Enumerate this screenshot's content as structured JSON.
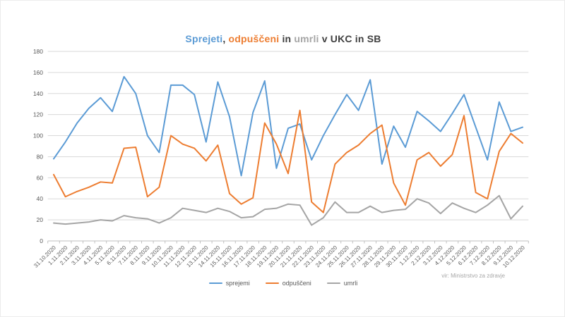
{
  "title": {
    "parts": [
      {
        "text": "Sprejeti",
        "color": "#5B9BD5"
      },
      {
        "text": ", ",
        "color": "#404040"
      },
      {
        "text": "odpuščeni",
        "color": "#ED7D31"
      },
      {
        "text": " in ",
        "color": "#404040"
      },
      {
        "text": "umrli",
        "color": "#A5A5A5"
      },
      {
        "text": " v UKC in SB",
        "color": "#404040"
      }
    ]
  },
  "source_note": "vir: Ministrstvo za zdravje",
  "legend": [
    {
      "label": "sprejemi",
      "color": "#5B9BD5"
    },
    {
      "label": "odpuščeni",
      "color": "#ED7D31"
    },
    {
      "label": "umrli",
      "color": "#A5A5A5"
    }
  ],
  "axis_colors": {
    "gridline": "#D9D9D9",
    "axis_line": "#BFBFBF",
    "tick": "#BFBFBF",
    "label": "#595959"
  },
  "chart_data": {
    "type": "line",
    "title": "Sprejeti, odpuščeni in umrli v UKC in SB",
    "xlabel": "",
    "ylabel": "",
    "ylim": [
      0,
      180
    ],
    "ytick_interval": 20,
    "grid": "horizontal",
    "legend_position": "bottom",
    "categories": [
      "31.10.2020",
      "1.11.2020",
      "2.11.2020",
      "3.11.2020",
      "4.11.2020",
      "5.11.2020",
      "6.11.2020",
      "7.11.2020",
      "8.11.2020",
      "9.11.2020",
      "10.11.2020",
      "11.11.2020",
      "12.11.2020",
      "13.11.2020",
      "14.11.2020",
      "15.11.2020",
      "16.11.2020",
      "17.11.2020",
      "18.11.2020",
      "19.11.2020",
      "20.11.2020",
      "21.11.2020",
      "22.11.2020",
      "23.11.2020",
      "24.11.2020",
      "25.11.2020",
      "26.11.2020",
      "27.11.2020",
      "28.11.2020",
      "29.11.2020",
      "30.11.2020",
      "1.12.2020",
      "2.12.2020",
      "3.12.2020",
      "4.12.2020",
      "5.12.2020",
      "6.12.2020",
      "7.12.2020",
      "8.12.2020",
      "9.12.2020",
      "10.12.2020"
    ],
    "series": [
      {
        "name": "sprejemi",
        "color": "#5B9BD5",
        "values": [
          78,
          94,
          112,
          126,
          136,
          123,
          156,
          140,
          100,
          84,
          148,
          148,
          139,
          94,
          151,
          118,
          62,
          122,
          152,
          69,
          107,
          111,
          77,
          100,
          120,
          139,
          124,
          153,
          73,
          109,
          89,
          123,
          114,
          104,
          121,
          139,
          108,
          77,
          132,
          104,
          108
        ]
      },
      {
        "name": "odpuščeni",
        "color": "#ED7D31",
        "values": [
          63,
          42,
          47,
          51,
          56,
          55,
          88,
          89,
          42,
          51,
          100,
          92,
          88,
          76,
          91,
          45,
          35,
          41,
          112,
          92,
          64,
          124,
          37,
          27,
          73,
          84,
          91,
          102,
          110,
          55,
          34,
          77,
          84,
          71,
          82,
          119,
          46,
          40,
          85,
          102,
          93
        ]
      },
      {
        "name": "umrli",
        "color": "#A5A5A5",
        "values": [
          17,
          16,
          17,
          18,
          20,
          19,
          24,
          22,
          21,
          17,
          22,
          31,
          29,
          27,
          31,
          28,
          22,
          23,
          30,
          31,
          35,
          34,
          15,
          22,
          37,
          27,
          27,
          33,
          27,
          29,
          30,
          40,
          36,
          26,
          36,
          31,
          27,
          34,
          43,
          21,
          33
        ]
      }
    ]
  }
}
